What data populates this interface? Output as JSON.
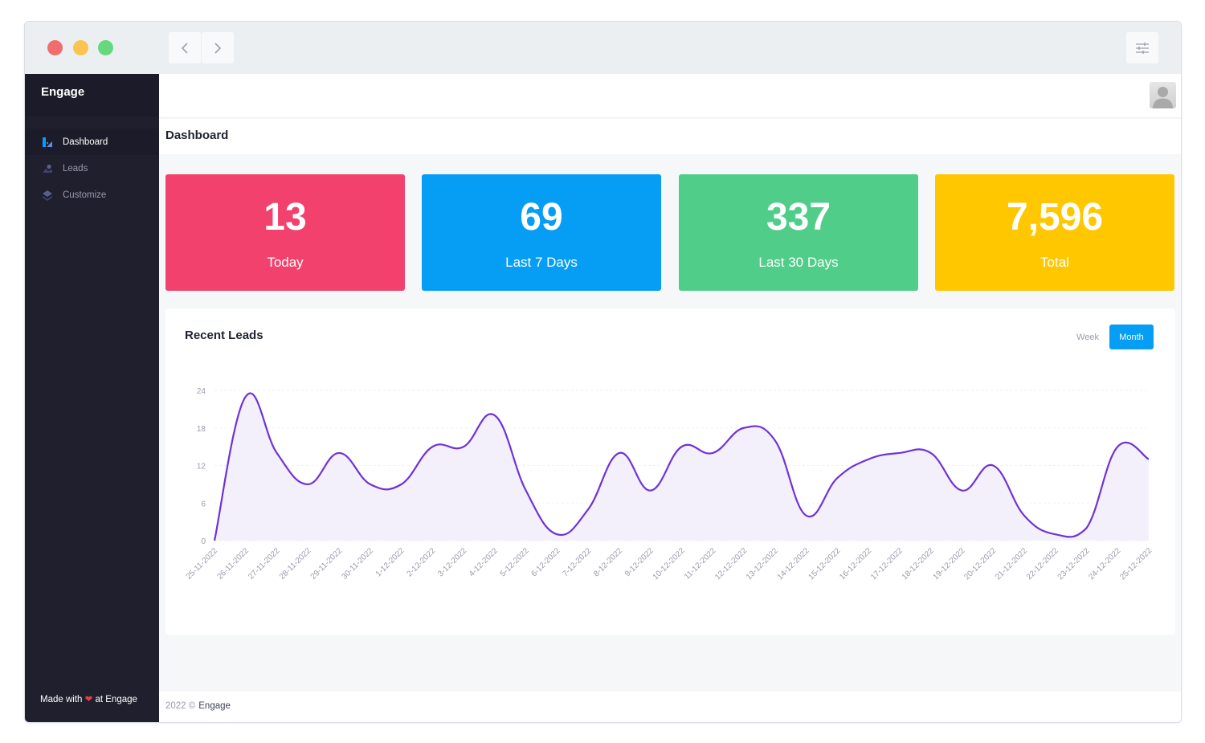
{
  "app": {
    "brand": "Engage"
  },
  "sidebar": {
    "items": [
      {
        "label": "Dashboard",
        "icon": "dashboard-icon",
        "active": true
      },
      {
        "label": "Leads",
        "icon": "leads-icon",
        "active": false
      },
      {
        "label": "Customize",
        "icon": "customize-icon",
        "active": false
      }
    ],
    "made_with_prefix": "Made with",
    "made_with_suffix": "at Engage"
  },
  "header": {
    "title": "Dashboard"
  },
  "stats": [
    {
      "value": "13",
      "label": "Today",
      "color": "#f1416c"
    },
    {
      "value": "69",
      "label": "Last 7 Days",
      "color": "#069ef5"
    },
    {
      "value": "337",
      "label": "Last 30 Days",
      "color": "#50cd89"
    },
    {
      "value": "7,596",
      "label": "Total",
      "color": "#ffc700"
    }
  ],
  "recent_leads": {
    "title": "Recent Leads",
    "tabs": {
      "week": "Week",
      "month": "Month",
      "active": "month"
    }
  },
  "chart_data": {
    "type": "area",
    "title": "",
    "xlabel": "",
    "ylabel": "",
    "ylim": [
      0,
      24
    ],
    "yticks": [
      0,
      6,
      12,
      18,
      24
    ],
    "grid": true,
    "line_color": "#6f33d6",
    "fill_color": "#f3f0fb",
    "categories": [
      "25-11-2022",
      "26-11-2022",
      "27-11-2022",
      "28-11-2022",
      "29-11-2022",
      "30-11-2022",
      "1-12-2022",
      "2-12-2022",
      "3-12-2022",
      "4-12-2022",
      "5-12-2022",
      "6-12-2022",
      "7-12-2022",
      "8-12-2022",
      "9-12-2022",
      "10-12-2022",
      "11-12-2022",
      "12-12-2022",
      "13-12-2022",
      "14-12-2022",
      "15-12-2022",
      "16-12-2022",
      "17-12-2022",
      "18-12-2022",
      "19-12-2022",
      "20-12-2022",
      "21-12-2022",
      "22-12-2022",
      "23-12-2022",
      "24-12-2022",
      "25-12-2022"
    ],
    "series": [
      {
        "values": [
          0,
          23,
          14,
          9,
          14,
          9,
          9,
          15,
          15,
          20,
          8,
          1,
          5,
          14,
          8,
          15,
          14,
          18,
          16,
          4,
          10,
          13,
          14,
          14,
          8,
          12,
          4,
          1,
          2,
          15,
          13
        ]
      }
    ]
  },
  "footer": {
    "year": "2022 ©",
    "brand": "Engage"
  }
}
